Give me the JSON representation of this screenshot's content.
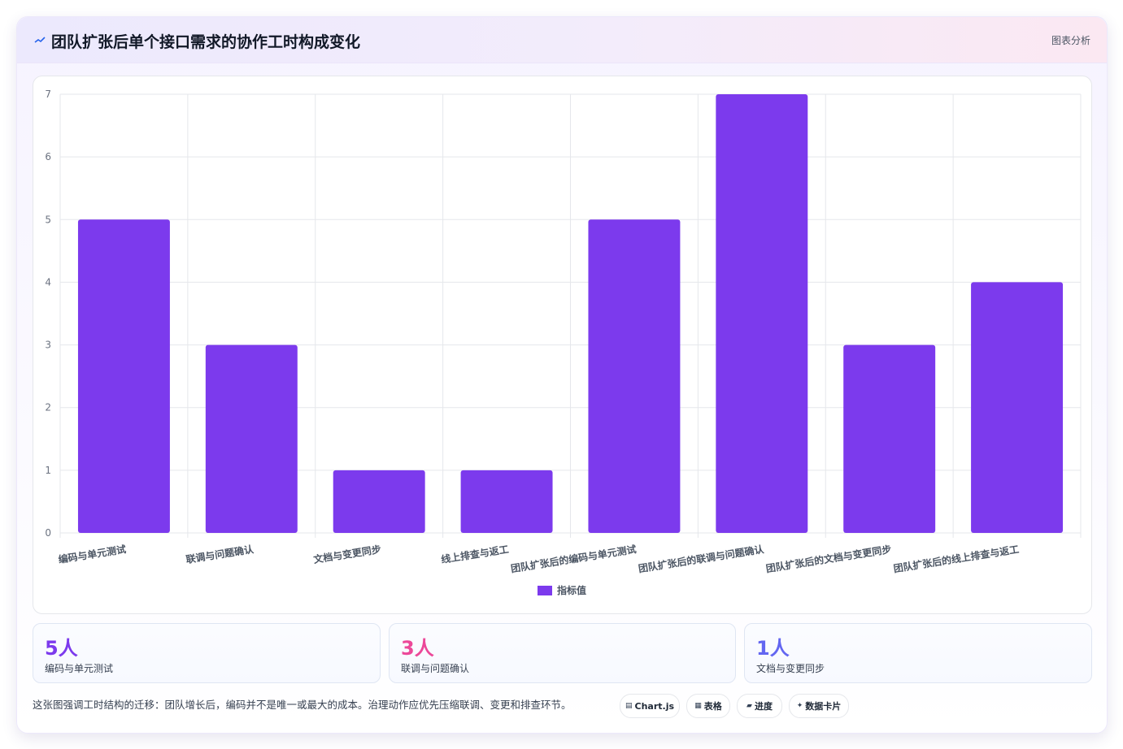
{
  "header": {
    "title": "团队扩张后单个接口需求的协作工时构成变化",
    "tag": "图表分析",
    "icon": "trend-line-icon"
  },
  "chart_data": {
    "type": "bar",
    "categories": [
      "编码与单元测试",
      "联调与问题确认",
      "文档与变更同步",
      "线上排查与返工",
      "团队扩张后的编码与单元测试",
      "团队扩张后的联调与问题确认",
      "团队扩张后的文档与变更同步",
      "团队扩张后的线上排查与返工"
    ],
    "series": [
      {
        "name": "指标值",
        "values": [
          5,
          3,
          1,
          1,
          5,
          7,
          3,
          4
        ],
        "color": "#7c3aed"
      }
    ],
    "ylim": [
      0,
      7
    ],
    "yticks": [
      0,
      1,
      2,
      3,
      4,
      5,
      6,
      7
    ],
    "grid": true,
    "legend": "bottom"
  },
  "stats": [
    {
      "value": "5人",
      "label": "编码与单元测试",
      "color": "#7c3aed"
    },
    {
      "value": "3人",
      "label": "联调与问题确认",
      "color": "#ec4899"
    },
    {
      "value": "1人",
      "label": "文档与变更同步",
      "color": "#6366f1"
    }
  ],
  "footnote": "这张图强调工时结构的迁移：团队增长后，编码并不是唯一或最大的成本。治理动作应优先压缩联调、变更和排查环节。",
  "pills": [
    {
      "glyph": "▤",
      "label": "Chart.js",
      "icon": "chart-icon"
    },
    {
      "glyph": "▦",
      "label": "表格",
      "icon": "table-icon"
    },
    {
      "glyph": "▰",
      "label": "进度",
      "icon": "progress-icon"
    },
    {
      "glyph": "✦",
      "label": "数据卡片",
      "icon": "sparkle-icon"
    }
  ]
}
